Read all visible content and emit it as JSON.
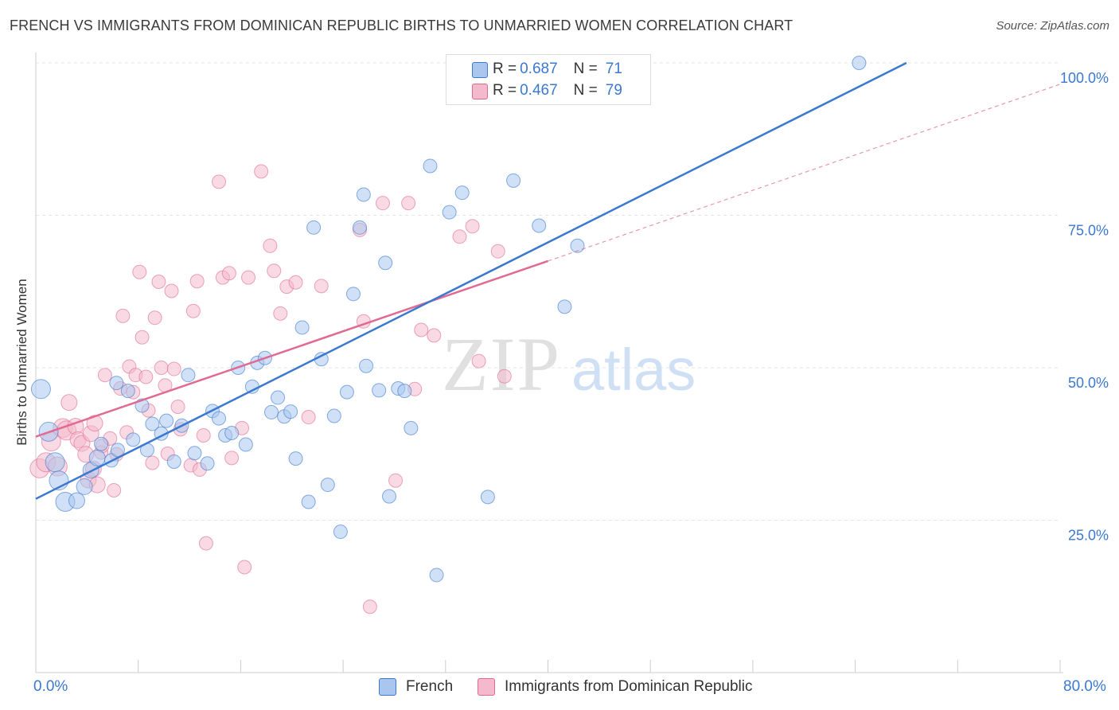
{
  "title": "FRENCH VS IMMIGRANTS FROM DOMINICAN REPUBLIC BIRTHS TO UNMARRIED WOMEN CORRELATION CHART",
  "source": "Source: ZipAtlas.com",
  "watermark": {
    "zip": "ZIP",
    "atlas": "atlas"
  },
  "colors": {
    "french": "#3b78d0",
    "dominican": "#e06a94",
    "french_fill": "#aac6ef",
    "dominican_fill": "#f4b9cc"
  },
  "legend": {
    "french": {
      "r_label": "R = ",
      "r_value": "0.687",
      "n_label": "N = ",
      "n_value": "71"
    },
    "dominican": {
      "r_label": "R = ",
      "r_value": "0.467",
      "n_label": "N = ",
      "n_value": "79"
    }
  },
  "bottom_legend": {
    "french": "French",
    "dominican": "Immigrants from Dominican Republic"
  },
  "chart_data": {
    "type": "scatter",
    "title": "FRENCH VS IMMIGRANTS FROM DOMINICAN REPUBLIC BIRTHS TO UNMARRIED WOMEN CORRELATION CHART",
    "xlabel": "",
    "ylabel": "Births to Unmarried Women",
    "xlim": [
      0,
      80
    ],
    "ylim": [
      0,
      102
    ],
    "x_tick_labels": {
      "min": "0.0%",
      "max": "80.0%"
    },
    "y_ticks": [
      {
        "value": 25,
        "label": "25.0%"
      },
      {
        "value": 50,
        "label": "50.0%"
      },
      {
        "value": 75,
        "label": "75.0%"
      },
      {
        "value": 100,
        "label": "100.0%"
      }
    ],
    "grid": true,
    "series": [
      {
        "name": "French",
        "color": "#3b78d0",
        "trend": {
          "x": [
            0,
            68
          ],
          "y": [
            28.5,
            100
          ]
        },
        "points": [
          [
            0.4,
            46.5
          ],
          [
            1.0,
            39.5
          ],
          [
            1.5,
            34.5
          ],
          [
            1.8,
            31.5
          ],
          [
            2.3,
            28.0
          ],
          [
            3.2,
            28.2
          ],
          [
            3.8,
            30.5
          ],
          [
            4.3,
            33.2
          ],
          [
            4.8,
            35.2
          ],
          [
            5.1,
            37.5
          ],
          [
            5.9,
            34.8
          ],
          [
            6.4,
            36.5
          ],
          [
            6.3,
            47.5
          ],
          [
            7.2,
            46.2
          ],
          [
            7.6,
            38.2
          ],
          [
            8.3,
            43.8
          ],
          [
            8.7,
            36.5
          ],
          [
            9.1,
            40.8
          ],
          [
            9.8,
            39.2
          ],
          [
            10.2,
            41.3
          ],
          [
            10.8,
            34.6
          ],
          [
            11.4,
            40.5
          ],
          [
            11.9,
            48.8
          ],
          [
            12.4,
            36.0
          ],
          [
            13.4,
            34.3
          ],
          [
            13.8,
            42.9
          ],
          [
            14.3,
            41.7
          ],
          [
            14.8,
            38.9
          ],
          [
            15.3,
            39.3
          ],
          [
            15.8,
            50.0
          ],
          [
            16.4,
            37.4
          ],
          [
            16.9,
            46.9
          ],
          [
            17.3,
            50.8
          ],
          [
            17.9,
            51.6
          ],
          [
            18.4,
            42.7
          ],
          [
            18.9,
            45.1
          ],
          [
            19.4,
            42.0
          ],
          [
            19.9,
            42.8
          ],
          [
            20.3,
            35.1
          ],
          [
            20.8,
            56.6
          ],
          [
            21.3,
            28.0
          ],
          [
            21.7,
            73.0
          ],
          [
            22.3,
            51.4
          ],
          [
            22.8,
            30.8
          ],
          [
            23.3,
            42.1
          ],
          [
            23.8,
            23.1
          ],
          [
            24.3,
            46.0
          ],
          [
            24.8,
            62.1
          ],
          [
            25.3,
            73.0
          ],
          [
            25.6,
            78.4
          ],
          [
            25.8,
            50.3
          ],
          [
            26.8,
            46.3
          ],
          [
            27.3,
            67.2
          ],
          [
            27.6,
            28.9
          ],
          [
            28.3,
            46.6
          ],
          [
            28.8,
            46.2
          ],
          [
            29.3,
            40.1
          ],
          [
            30.8,
            83.1
          ],
          [
            31.3,
            16.0
          ],
          [
            32.3,
            75.5
          ],
          [
            33.3,
            78.7
          ],
          [
            35.3,
            28.8
          ],
          [
            37.3,
            80.7
          ],
          [
            38.3,
            100.0
          ],
          [
            39.3,
            73.3
          ],
          [
            41.3,
            60.0
          ],
          [
            42.3,
            70.0
          ],
          [
            64.3,
            100.0
          ]
        ]
      },
      {
        "name": "Immigrants from Dominican Republic",
        "color": "#e06a94",
        "trend": {
          "x": [
            0,
            40
          ],
          "y": [
            38.7,
            67.5
          ]
        },
        "trend_ext": {
          "x": [
            40,
            80
          ],
          "y": [
            67.5,
            96.5
          ]
        },
        "points": [
          [
            0.3,
            33.5
          ],
          [
            0.8,
            34.5
          ],
          [
            1.2,
            37.9
          ],
          [
            1.7,
            33.8
          ],
          [
            2.1,
            40.1
          ],
          [
            2.4,
            39.7
          ],
          [
            2.6,
            44.3
          ],
          [
            3.1,
            40.4
          ],
          [
            3.3,
            38.2
          ],
          [
            3.6,
            37.6
          ],
          [
            3.9,
            35.8
          ],
          [
            4.1,
            31.6
          ],
          [
            4.3,
            39.2
          ],
          [
            4.5,
            33.4
          ],
          [
            4.6,
            40.9
          ],
          [
            4.8,
            30.8
          ],
          [
            5.1,
            36.1
          ],
          [
            5.2,
            37.2
          ],
          [
            5.4,
            48.8
          ],
          [
            5.8,
            38.4
          ],
          [
            6.1,
            29.9
          ],
          [
            6.3,
            35.8
          ],
          [
            6.6,
            46.6
          ],
          [
            6.8,
            58.5
          ],
          [
            7.1,
            39.4
          ],
          [
            7.3,
            50.2
          ],
          [
            7.6,
            46.0
          ],
          [
            7.8,
            48.8
          ],
          [
            8.1,
            65.7
          ],
          [
            8.3,
            55.0
          ],
          [
            8.6,
            48.5
          ],
          [
            8.8,
            43.0
          ],
          [
            9.1,
            34.4
          ],
          [
            9.3,
            58.2
          ],
          [
            9.6,
            64.1
          ],
          [
            9.8,
            50.0
          ],
          [
            10.1,
            47.1
          ],
          [
            10.3,
            35.9
          ],
          [
            10.6,
            62.6
          ],
          [
            10.8,
            49.8
          ],
          [
            11.1,
            43.6
          ],
          [
            11.3,
            39.9
          ],
          [
            12.1,
            34.0
          ],
          [
            12.3,
            59.3
          ],
          [
            12.6,
            64.2
          ],
          [
            12.8,
            33.3
          ],
          [
            13.1,
            38.9
          ],
          [
            13.3,
            21.2
          ],
          [
            14.3,
            80.5
          ],
          [
            14.6,
            64.8
          ],
          [
            15.1,
            65.5
          ],
          [
            15.3,
            35.2
          ],
          [
            16.1,
            40.1
          ],
          [
            16.3,
            17.3
          ],
          [
            16.6,
            64.8
          ],
          [
            17.6,
            82.2
          ],
          [
            18.3,
            70.0
          ],
          [
            18.6,
            65.9
          ],
          [
            19.1,
            58.9
          ],
          [
            19.6,
            63.3
          ],
          [
            20.3,
            64.0
          ],
          [
            21.3,
            41.9
          ],
          [
            22.3,
            63.4
          ],
          [
            25.3,
            72.6
          ],
          [
            25.6,
            57.6
          ],
          [
            26.1,
            10.8
          ],
          [
            27.1,
            77.0
          ],
          [
            28.1,
            31.5
          ],
          [
            29.1,
            77.0
          ],
          [
            29.6,
            46.5
          ],
          [
            30.1,
            56.2
          ],
          [
            31.1,
            55.3
          ],
          [
            33.1,
            71.5
          ],
          [
            34.1,
            73.2
          ],
          [
            34.6,
            51.1
          ],
          [
            36.1,
            69.1
          ],
          [
            36.6,
            48.6
          ]
        ]
      }
    ]
  }
}
